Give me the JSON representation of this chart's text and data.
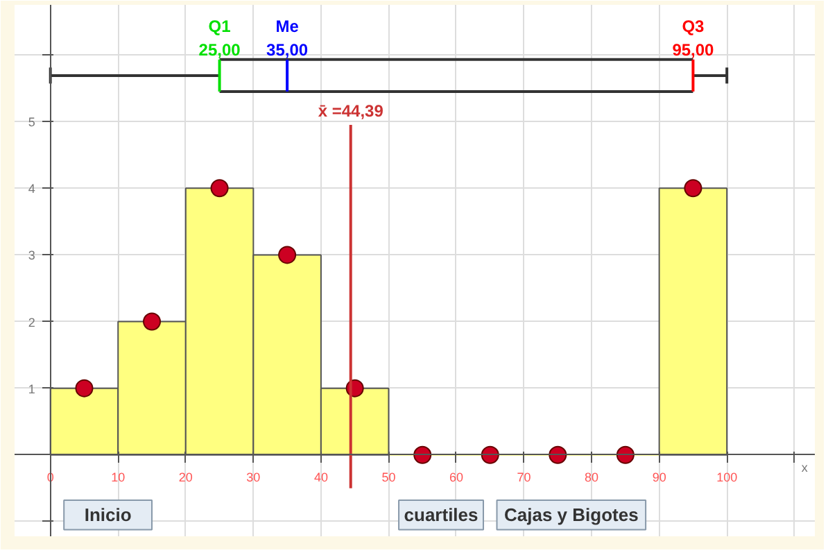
{
  "chart_data": {
    "type": "histogram",
    "xlabel": "x",
    "bins": [
      0,
      10,
      20,
      30,
      40,
      50,
      60,
      70,
      80,
      90,
      100
    ],
    "values": [
      1,
      2,
      4,
      3,
      1,
      0,
      0,
      0,
      0,
      4
    ],
    "color": "#ffff80",
    "series": [
      {
        "type": "scatter",
        "marker": "circle",
        "color": "#cc0022",
        "x": [
          5,
          15,
          25,
          35,
          45,
          55,
          65,
          75,
          85,
          95
        ],
        "values": [
          1,
          2,
          4,
          3,
          1,
          0,
          0,
          0,
          0,
          4
        ]
      },
      {
        "type": "line",
        "marker": "none",
        "color": "#333333",
        "x": [
          0,
          25
        ],
        "values": [
          5.69,
          5.69
        ],
        "errors": [
          0.12,
          null
        ]
      },
      {
        "type": "line",
        "marker": "none",
        "color": "#333333",
        "x": [
          25,
          95
        ],
        "values": [
          5.93,
          5.93
        ]
      },
      {
        "type": "line",
        "marker": "none",
        "color": "#333333",
        "x": [
          25,
          95
        ],
        "values": [
          5.45,
          5.45
        ]
      },
      {
        "type": "line",
        "marker": "none",
        "color": "#333333",
        "x": [
          95,
          100
        ],
        "values": [
          5.69,
          5.69
        ],
        "errors": [
          null,
          0.12
        ]
      }
    ],
    "ref_lines": [
      {
        "axis": "x",
        "value": 25,
        "label": "Q1\n25,00",
        "color": "#00e000"
      },
      {
        "axis": "x",
        "value": 35,
        "label": "Me\n35,00",
        "color": "#0000ff"
      },
      {
        "axis": "x",
        "value": 95,
        "label": "Q3\n95,00",
        "color": "#ff0000"
      },
      {
        "axis": "x",
        "value": 44.39,
        "label": "x̄ =44,39",
        "color": "#cc3333"
      }
    ],
    "annotations": [
      "Inicio",
      "cuartiles",
      "Cajas y Bigotes"
    ],
    "xlim": [
      -5.3,
      113
    ],
    "ylim": [
      -1.22,
      6.75
    ],
    "xticks": [
      0,
      10,
      20,
      30,
      40,
      50,
      60,
      70,
      80,
      90,
      100,
      {
        "value": 110,
        "label": null
      }
    ],
    "yticks": [
      {
        "value": -1,
        "label": null
      },
      {
        "value": 0,
        "label": null
      },
      1,
      2,
      3,
      4,
      5,
      {
        "value": 6,
        "label": null
      }
    ],
    "grid": true
  }
}
